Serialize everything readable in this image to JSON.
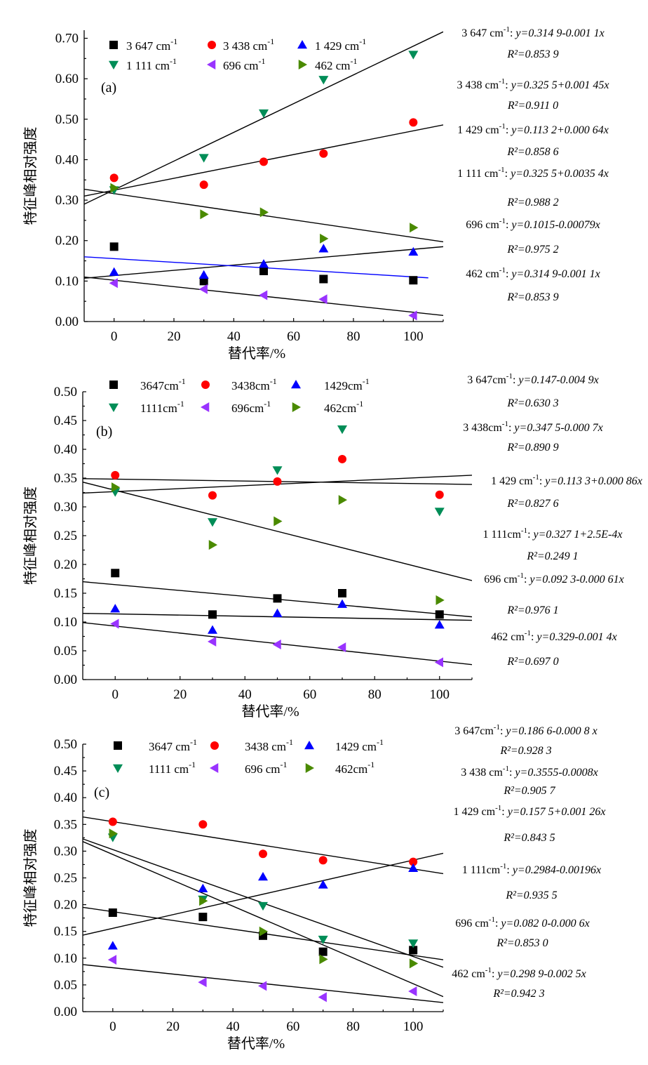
{
  "figure": {
    "colors": {
      "s3647": "#000000",
      "s3438": "#ff0000",
      "s1429": "#0000ff",
      "s1111": "#008d57",
      "s696": "#9933ff",
      "s462": "#4a8a00",
      "blue_fit": "#0000ff",
      "black_fit": "#000000"
    },
    "markers": {
      "s3647": "square",
      "s3438": "circle",
      "s1429": "triangle-up",
      "s1111": "triangle-down",
      "s696": "triangle-left",
      "s462": "triangle-right"
    }
  },
  "chart_data": [
    {
      "type": "scatter",
      "panel_label": "(a)",
      "xlabel": "替代率/%",
      "ylabel": "特征峰相对强度",
      "xlim": [
        -10,
        110
      ],
      "ylim": [
        0,
        0.72
      ],
      "xticks": [
        "0",
        "20",
        "40",
        "60",
        "80",
        "100"
      ],
      "yticks": [
        "0.00",
        "0.10",
        "0.20",
        "0.30",
        "0.40",
        "0.50",
        "0.60",
        "0.70"
      ],
      "legend_labels": [
        "3 647 cm",
        "3 438 cm",
        "1 429 cm",
        "1 111 cm",
        "696 cm",
        "462 cm"
      ],
      "unit_sup": "-1",
      "x": [
        0,
        30,
        50,
        70,
        100
      ],
      "series": [
        {
          "key": "s3647",
          "name": "3 647 cm⁻¹",
          "values": [
            0.185,
            0.1,
            0.125,
            0.105,
            0.102
          ]
        },
        {
          "key": "s3438",
          "name": "3 438 cm⁻¹",
          "values": [
            0.355,
            0.338,
            0.395,
            0.415,
            0.492
          ]
        },
        {
          "key": "s1429",
          "name": "1 429 cm⁻¹",
          "values": [
            0.122,
            0.115,
            0.142,
            0.18,
            0.172
          ]
        },
        {
          "key": "s1111",
          "name": "1 111 cm⁻¹",
          "values": [
            0.325,
            0.405,
            0.515,
            0.598,
            0.66
          ]
        },
        {
          "key": "s696",
          "name": "696 cm⁻¹",
          "values": [
            0.095,
            0.08,
            0.065,
            0.055,
            0.015
          ]
        },
        {
          "key": "s462",
          "name": "462 cm⁻¹",
          "values": [
            0.33,
            0.265,
            0.27,
            0.205,
            0.232
          ]
        }
      ],
      "fit_lines": [
        {
          "color": "black_fit",
          "x": [
            -10,
            110
          ],
          "y": [
            0.29,
            0.716
          ]
        },
        {
          "color": "black_fit",
          "x": [
            -10,
            110
          ],
          "y": [
            0.31,
            0.486
          ]
        },
        {
          "color": "black_fit",
          "x": [
            -10,
            110
          ],
          "y": [
            0.327,
            0.197
          ]
        },
        {
          "color": "black_fit",
          "x": [
            -10,
            110
          ],
          "y": [
            0.107,
            0.185
          ]
        },
        {
          "color": "blue_fit",
          "x": [
            -10,
            105
          ],
          "y": [
            0.16,
            0.108
          ]
        },
        {
          "color": "black_fit",
          "x": [
            -10,
            110
          ],
          "y": [
            0.11,
            0.015
          ]
        }
      ],
      "equations": [
        {
          "label": "3 647 cm",
          "sup": "-1",
          "eq": "y=0.314 9-0.001 1x"
        },
        {
          "label": "",
          "sup": "",
          "eq": "R²=0.853 9"
        },
        {
          "label": "3 438 cm",
          "sup": "-1",
          "eq": "y=0.325 5+0.001 45x"
        },
        {
          "label": "",
          "sup": "",
          "eq": "R²=0.911 0"
        },
        {
          "label": "1 429 cm",
          "sup": "-1",
          "eq": "y=0.113 2+0.000 64x"
        },
        {
          "label": "",
          "sup": "",
          "eq": "R²=0.858 6"
        },
        {
          "label": "1 111 cm",
          "sup": "-1",
          "eq": "y=0.325 5+0.0035 4x"
        },
        {
          "label": "",
          "sup": "",
          "eq": "R²=0.988 2"
        },
        {
          "label": "696 cm",
          "sup": "-1",
          "eq": "y=0.1015-0.00079x"
        },
        {
          "label": "",
          "sup": "",
          "eq": "R²=0.975 2"
        },
        {
          "label": "462 cm",
          "sup": "-1",
          "eq": "y=0.314 9-0.001 1x"
        },
        {
          "label": "",
          "sup": "",
          "eq": "R²=0.853 9"
        }
      ]
    },
    {
      "type": "scatter",
      "panel_label": "(b)",
      "xlabel": "替代率/%",
      "ylabel": "特征峰相对强度",
      "xlim": [
        -10,
        110
      ],
      "ylim": [
        0,
        0.5
      ],
      "xticks": [
        "0",
        "20",
        "40",
        "60",
        "80",
        "100"
      ],
      "yticks": [
        "0.00",
        "0.05",
        "0.10",
        "0.15",
        "0.20",
        "0.25",
        "0.30",
        "0.35",
        "0.40",
        "0.45",
        "0.50"
      ],
      "legend_labels": [
        "3647cm",
        "3438cm",
        "1429cm",
        "1111cm",
        "696cm",
        "462cm"
      ],
      "unit_sup": "-1",
      "x": [
        0,
        30,
        50,
        70,
        100
      ],
      "series": [
        {
          "key": "s3647",
          "name": "3647cm⁻¹",
          "values": [
            0.185,
            0.113,
            0.141,
            0.15,
            0.113
          ]
        },
        {
          "key": "s3438",
          "name": "3438cm⁻¹",
          "values": [
            0.355,
            0.32,
            0.344,
            0.383,
            0.321
          ]
        },
        {
          "key": "s1429",
          "name": "1429cm⁻¹",
          "values": [
            0.123,
            0.086,
            0.115,
            0.131,
            0.095
          ]
        },
        {
          "key": "s1111",
          "name": "1111cm⁻¹",
          "values": [
            0.326,
            0.274,
            0.364,
            0.435,
            0.292
          ]
        },
        {
          "key": "s696",
          "name": "696cm⁻¹",
          "values": [
            0.097,
            0.066,
            0.061,
            0.056,
            0.03
          ]
        },
        {
          "key": "s462",
          "name": "462cm⁻¹",
          "values": [
            0.334,
            0.234,
            0.275,
            0.312,
            0.138
          ]
        }
      ],
      "fit_lines": [
        {
          "color": "black_fit",
          "x": [
            -10,
            110
          ],
          "y": [
            0.349,
            0.339
          ]
        },
        {
          "color": "black_fit",
          "x": [
            -10,
            110
          ],
          "y": [
            0.324,
            0.355
          ]
        },
        {
          "color": "black_fit",
          "x": [
            -10,
            110
          ],
          "y": [
            0.343,
            0.172
          ]
        },
        {
          "color": "black_fit",
          "x": [
            -10,
            110
          ],
          "y": [
            0.17,
            0.109
          ]
        },
        {
          "color": "black_fit",
          "x": [
            -10,
            110
          ],
          "y": [
            0.115,
            0.103
          ]
        },
        {
          "color": "black_fit",
          "x": [
            -10,
            110
          ],
          "y": [
            0.099,
            0.026
          ]
        }
      ],
      "equations": [
        {
          "label": "3 647cm",
          "sup": "-1",
          "eq": "y=0.147-0.004 9x"
        },
        {
          "label": "",
          "sup": "",
          "eq": "R²=0.630 3"
        },
        {
          "label": "3 438cm",
          "sup": "-1",
          "eq": "y=0.347 5-0.000 7x"
        },
        {
          "label": "",
          "sup": "",
          "eq": "R²=0.890 9"
        },
        {
          "label": "1 429 cm",
          "sup": "-1",
          "eq": "y=0.113 3+0.000 86x"
        },
        {
          "label": "",
          "sup": "",
          "eq": "R²=0.827 6"
        },
        {
          "label": "1 111cm",
          "sup": "-1",
          "eq": "y=0.327 1+2.5E-4x"
        },
        {
          "label": "",
          "sup": "",
          "eq": "R²=0.249 1"
        },
        {
          "label": "696 cm",
          "sup": "-1",
          "eq": "y=0.092 3-0.000 61x"
        },
        {
          "label": "",
          "sup": "",
          "eq": "R²=0.976 1"
        },
        {
          "label": "462 cm",
          "sup": "-1",
          "eq": "y=0.329-0.001 4x"
        },
        {
          "label": "",
          "sup": "",
          "eq": "R²=0.697 0"
        }
      ]
    },
    {
      "type": "scatter",
      "panel_label": "(c)",
      "xlabel": "替代率/%",
      "ylabel": "特征峰相对强度",
      "xlim": [
        -10,
        110
      ],
      "ylim": [
        0,
        0.5
      ],
      "xticks": [
        "0",
        "20",
        "40",
        "60",
        "80",
        "100"
      ],
      "yticks": [
        "0.00",
        "0.05",
        "0.10",
        "0.15",
        "0.20",
        "0.25",
        "0.30",
        "0.35",
        "0.40",
        "0.45",
        "0.50"
      ],
      "legend_labels": [
        "3647 cm",
        "3438 cm",
        "1429 cm",
        "1111 cm",
        "696 cm",
        "462cm"
      ],
      "unit_sup": "-1",
      "x": [
        0,
        30,
        50,
        70,
        100
      ],
      "series": [
        {
          "key": "s3647",
          "name": "3647 cm⁻¹",
          "values": [
            0.185,
            0.177,
            0.142,
            0.112,
            0.115
          ]
        },
        {
          "key": "s3438",
          "name": "3438 cm⁻¹",
          "values": [
            0.355,
            0.35,
            0.295,
            0.283,
            0.28
          ]
        },
        {
          "key": "s1429",
          "name": "1429 cm⁻¹",
          "values": [
            0.123,
            0.23,
            0.252,
            0.237,
            0.268
          ]
        },
        {
          "key": "s1111",
          "name": "1111 cm⁻¹",
          "values": [
            0.326,
            0.21,
            0.198,
            0.135,
            0.128
          ]
        },
        {
          "key": "s696",
          "name": "696 cm⁻¹",
          "values": [
            0.097,
            0.055,
            0.048,
            0.027,
            0.038
          ]
        },
        {
          "key": "s462",
          "name": "462cm⁻¹",
          "values": [
            0.333,
            0.207,
            0.15,
            0.098,
            0.09
          ]
        }
      ],
      "fit_lines": [
        {
          "color": "black_fit",
          "x": [
            -10,
            110
          ],
          "y": [
            0.364,
            0.258
          ]
        },
        {
          "color": "black_fit",
          "x": [
            -10,
            110
          ],
          "y": [
            0.143,
            0.296
          ]
        },
        {
          "color": "black_fit",
          "x": [
            -10,
            110
          ],
          "y": [
            0.323,
            0.083
          ]
        },
        {
          "color": "black_fit",
          "x": [
            -10,
            110
          ],
          "y": [
            0.318,
            0.028
          ]
        },
        {
          "color": "black_fit",
          "x": [
            -10,
            110
          ],
          "y": [
            0.195,
            0.097
          ]
        },
        {
          "color": "black_fit",
          "x": [
            -10,
            110
          ],
          "y": [
            0.088,
            0.017
          ]
        }
      ],
      "equations": [
        {
          "label": "3 647cm",
          "sup": "-1",
          "eq": "y=0.186 6-0.000 8 x"
        },
        {
          "label": "",
          "sup": "",
          "eq": "R²=0.928 3"
        },
        {
          "label": "3 438 cm",
          "sup": "-1",
          "eq": "y=0.3555-0.0008x"
        },
        {
          "label": "",
          "sup": "",
          "eq": "R²=0.905 7"
        },
        {
          "label": "1 429 cm",
          "sup": "-1",
          "eq": "y=0.157 5+0.001 26x"
        },
        {
          "label": "",
          "sup": "",
          "eq": "R²=0.843 5"
        },
        {
          "label": "1 111cm",
          "sup": "-1",
          "eq": "y=0.2984-0.00196x"
        },
        {
          "label": "",
          "sup": "",
          "eq": "R²=0.935 5"
        },
        {
          "label": "696 cm",
          "sup": "-1",
          "eq": "y=0.082 0-0.000 6x"
        },
        {
          "label": "",
          "sup": "",
          "eq": "R²=0.853 0"
        },
        {
          "label": "462 cm",
          "sup": "-1",
          "eq": "y=0.298 9-0.002 5x"
        },
        {
          "label": "",
          "sup": "",
          "eq": "R²=0.942 3"
        }
      ]
    }
  ]
}
